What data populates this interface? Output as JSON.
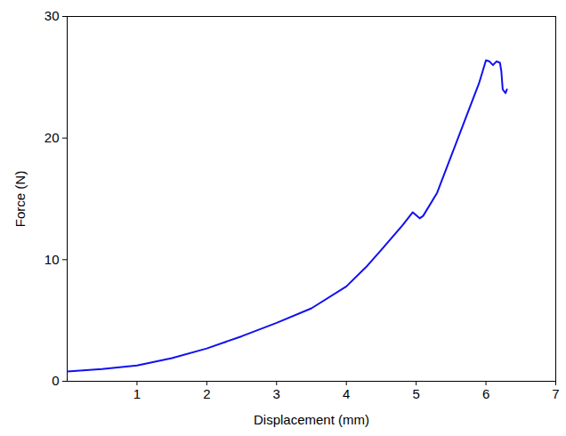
{
  "chart_data": {
    "type": "line",
    "x_label": "Displacement (mm)",
    "y_label": "Force (N)",
    "x": [
      0,
      0.5,
      1,
      1.5,
      2,
      2.5,
      3,
      3.5,
      4,
      4.3,
      4.5,
      4.8,
      4.95,
      5.05,
      5.1,
      5.3,
      5.5,
      5.7,
      5.9,
      6.0,
      6.05,
      6.1,
      6.15,
      6.2,
      6.22,
      6.24,
      6.28,
      6.3
    ],
    "values": [
      0.8,
      1.0,
      1.3,
      1.9,
      2.7,
      3.7,
      4.8,
      6.0,
      7.8,
      9.5,
      10.8,
      12.8,
      13.9,
      13.4,
      13.6,
      15.5,
      18.5,
      21.5,
      24.5,
      26.4,
      26.3,
      26.0,
      26.3,
      26.2,
      25.5,
      24.0,
      23.7,
      24.0
    ],
    "color": "#1010f0",
    "xlim": [
      0,
      7
    ],
    "xticks": [
      1,
      2,
      3,
      4,
      5,
      6,
      7
    ],
    "ylim": [
      0,
      30
    ],
    "yticks": [
      0,
      10,
      20,
      30
    ],
    "grid": false
  }
}
